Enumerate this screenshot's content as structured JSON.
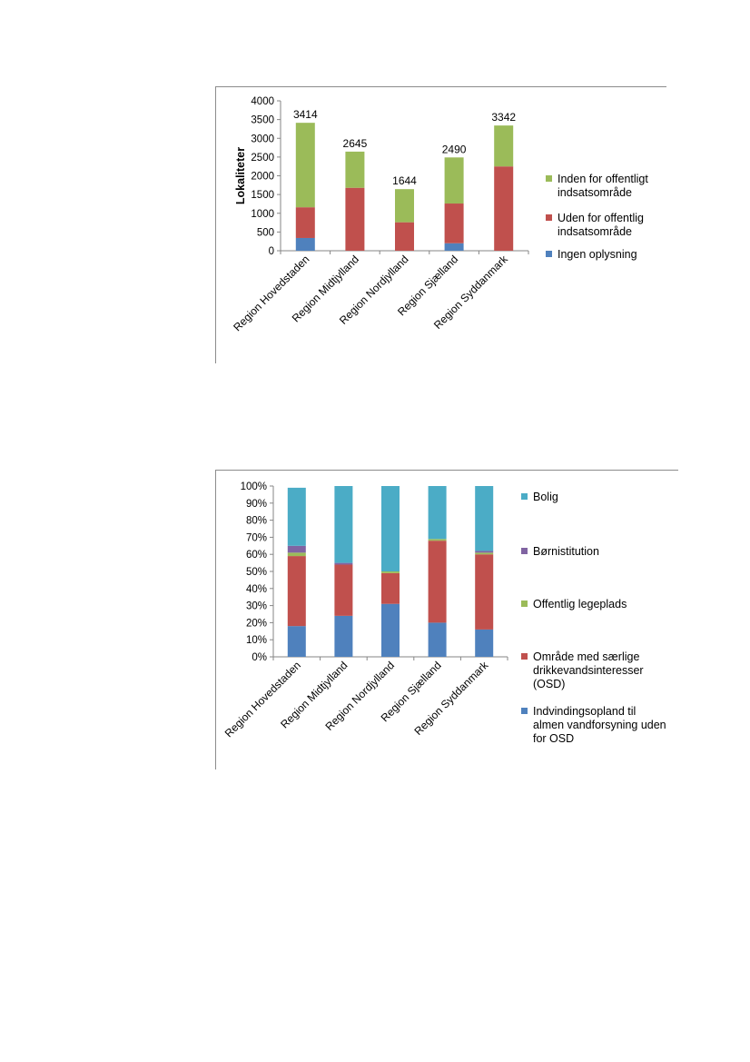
{
  "chart_data": [
    {
      "type": "bar",
      "stacked": true,
      "ylabel": "Lokaliteter",
      "ylim": [
        0,
        4000
      ],
      "yticks": [
        "0",
        "500",
        "1000",
        "1500",
        "2000",
        "2500",
        "3000",
        "3500",
        "4000"
      ],
      "grid": false,
      "legend_position": "right",
      "categories": [
        "Region Hovedstaden",
        "Region Midtjylland",
        "Region Nordjylland",
        "Region Sjælland",
        "Region Syddanmark"
      ],
      "series": [
        {
          "name": "Ingen oplysning",
          "color": "#4f81bd",
          "values": [
            340,
            0,
            0,
            200,
            0
          ]
        },
        {
          "name": "Uden for offentlig indsatsområde",
          "color": "#c0504d",
          "values": [
            820,
            1680,
            760,
            1060,
            2250
          ]
        },
        {
          "name": "Inden for offentligt indsatsområde",
          "color": "#9bbb59",
          "values": [
            2254,
            965,
            884,
            1230,
            1092
          ]
        }
      ],
      "total_labels": [
        "3414",
        "2645",
        "1644",
        "2490",
        "3342"
      ]
    },
    {
      "type": "bar",
      "stacked": true,
      "percent": true,
      "ylim": [
        0,
        100
      ],
      "yticks": [
        "0%",
        "10%",
        "20%",
        "30%",
        "40%",
        "50%",
        "60%",
        "70%",
        "80%",
        "90%",
        "100%"
      ],
      "grid": false,
      "legend_position": "right",
      "categories": [
        "Region Hovedstaden",
        "Region Midtjylland",
        "Region Nordjylland",
        "Region Sjælland",
        "Region Syddanmark"
      ],
      "series": [
        {
          "name": "Indvindingsopland til almen vandforsyning uden for OSD",
          "color": "#4f81bd",
          "values": [
            18,
            24,
            31,
            20,
            16
          ]
        },
        {
          "name": "Område med særlige drikkevandsinteresser (OSD)",
          "color": "#c0504d",
          "values": [
            41,
            30,
            18,
            48,
            44
          ]
        },
        {
          "name": "Offentlig legeplads",
          "color": "#9bbb59",
          "values": [
            2,
            0,
            1,
            1,
            1
          ]
        },
        {
          "name": "Børnistitution",
          "color": "#8064a2",
          "values": [
            4,
            1,
            0,
            0,
            1
          ]
        },
        {
          "name": "Bolig",
          "color": "#4bacc6",
          "values": [
            34,
            45,
            50,
            31,
            38
          ]
        }
      ]
    }
  ]
}
